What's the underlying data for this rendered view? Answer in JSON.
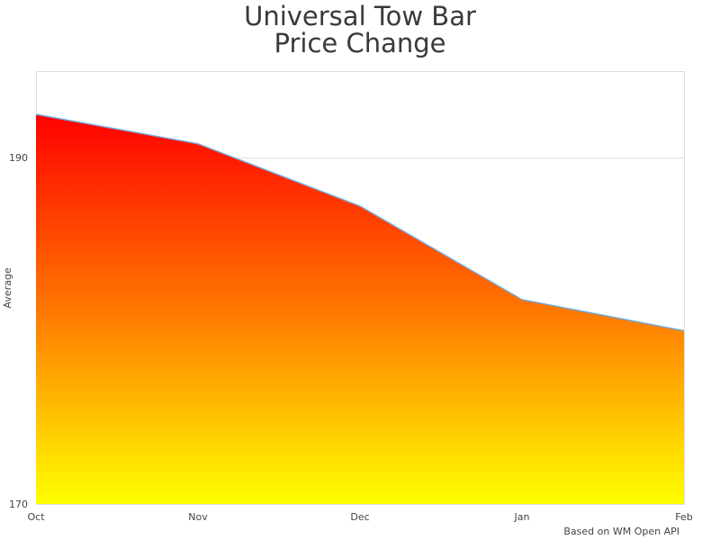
{
  "title": {
    "line1": "Universal Tow Bar",
    "line2": "Price Change"
  },
  "credit": "Based on WM Open API",
  "colors": {
    "top": "#ff0000",
    "bottom": "#ffff00",
    "line": "#6fa8dc",
    "grid": "#dddddd"
  },
  "chart_data": {
    "type": "area",
    "title": "Universal Tow Bar Price Change",
    "xlabel": "",
    "ylabel": "Average",
    "categories": [
      "Oct",
      "Nov",
      "Dec",
      "Jan",
      "Feb"
    ],
    "values": [
      192.5,
      190.8,
      187.2,
      181.8,
      180.0
    ],
    "ylim": [
      170,
      195
    ],
    "yticks": [
      170,
      190
    ],
    "grid": true,
    "legend": "none",
    "fill": "vertical gradient red (top) to yellow (bottom)",
    "annotation": "Based on WM Open API"
  }
}
